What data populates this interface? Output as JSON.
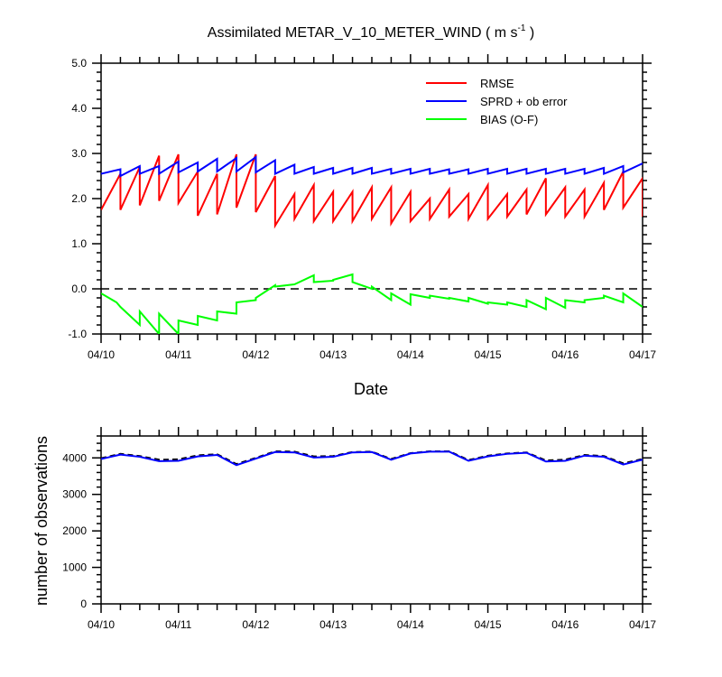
{
  "chart_data": [
    {
      "type": "line",
      "title": "Assimilated METAR_V_10_METER_WIND ( m s",
      "title_superscript": "-1",
      "title_suffix": " )",
      "xlabel": "Date",
      "ylabel": "",
      "x_ticks": [
        "04/10",
        "04/11",
        "04/12",
        "04/13",
        "04/14",
        "04/15",
        "04/16",
        "04/17"
      ],
      "ylim": [
        -1.0,
        5.0
      ],
      "y_ticks": [
        "-1.0",
        "0.0",
        "1.0",
        "2.0",
        "3.0",
        "4.0",
        "5.0"
      ],
      "reference_line": 0.0,
      "legend_position": "top-right",
      "series": [
        {
          "name": "RMSE",
          "color": "#ff0000",
          "x": [
            0.0,
            0.25,
            0.25,
            0.5,
            0.5,
            0.75,
            0.75,
            1.0,
            1.0,
            1.25,
            1.25,
            1.5,
            1.5,
            1.75,
            1.75,
            2.0,
            2.0,
            2.25,
            2.25,
            2.5,
            2.5,
            2.75,
            2.75,
            3.0,
            3.0,
            3.25,
            3.25,
            3.5,
            3.5,
            3.75,
            3.75,
            4.0,
            4.0,
            4.25,
            4.25,
            4.5,
            4.5,
            4.75,
            4.75,
            5.0,
            5.0,
            5.25,
            5.25,
            5.5,
            5.5,
            5.75,
            5.75,
            6.0,
            6.0,
            6.25,
            6.25,
            6.5,
            6.5,
            6.75,
            6.75,
            7.0,
            7.0
          ],
          "values": [
            1.75,
            2.55,
            1.75,
            2.7,
            1.85,
            2.95,
            1.95,
            2.98,
            1.9,
            2.6,
            1.62,
            2.55,
            1.65,
            2.98,
            1.8,
            2.98,
            1.7,
            2.5,
            1.4,
            2.1,
            1.55,
            2.3,
            1.5,
            2.15,
            1.5,
            2.15,
            1.5,
            2.25,
            1.55,
            2.25,
            1.45,
            2.15,
            1.5,
            2.0,
            1.55,
            2.2,
            1.6,
            2.1,
            1.55,
            2.3,
            1.55,
            2.1,
            1.6,
            2.2,
            1.65,
            2.45,
            1.65,
            2.25,
            1.6,
            2.2,
            1.6,
            2.35,
            1.75,
            2.6,
            1.8,
            2.45,
            1.6
          ]
        },
        {
          "name": "SPRD + ob error",
          "color": "#0000ff",
          "x": [
            0.0,
            0.25,
            0.25,
            0.5,
            0.5,
            0.75,
            0.75,
            1.0,
            1.0,
            1.25,
            1.25,
            1.5,
            1.5,
            1.75,
            1.75,
            2.0,
            2.0,
            2.25,
            2.25,
            2.5,
            2.5,
            2.75,
            2.75,
            3.0,
            3.0,
            3.25,
            3.25,
            3.5,
            3.5,
            3.75,
            3.75,
            4.0,
            4.0,
            4.25,
            4.25,
            4.5,
            4.5,
            4.75,
            4.75,
            5.0,
            5.0,
            5.25,
            5.25,
            5.5,
            5.5,
            5.75,
            5.75,
            6.0,
            6.0,
            6.25,
            6.25,
            6.5,
            6.5,
            6.75,
            6.75,
            7.0
          ],
          "values": [
            2.55,
            2.65,
            2.5,
            2.72,
            2.55,
            2.72,
            2.55,
            2.82,
            2.58,
            2.8,
            2.6,
            2.88,
            2.6,
            2.9,
            2.6,
            2.92,
            2.58,
            2.85,
            2.55,
            2.75,
            2.55,
            2.7,
            2.55,
            2.68,
            2.55,
            2.68,
            2.55,
            2.68,
            2.55,
            2.66,
            2.55,
            2.66,
            2.55,
            2.66,
            2.55,
            2.65,
            2.55,
            2.65,
            2.55,
            2.66,
            2.55,
            2.66,
            2.55,
            2.66,
            2.55,
            2.66,
            2.55,
            2.66,
            2.55,
            2.66,
            2.55,
            2.68,
            2.55,
            2.72,
            2.58,
            2.78
          ]
        },
        {
          "name": "BIAS (O-F)",
          "color": "#00ff00",
          "x": [
            0.0,
            0.2,
            0.25,
            0.5,
            0.5,
            0.75,
            0.75,
            1.0,
            1.0,
            1.25,
            1.25,
            1.5,
            1.5,
            1.75,
            1.75,
            2.0,
            2.0,
            2.25,
            2.25,
            2.5,
            2.5,
            2.75,
            2.75,
            3.0,
            3.0,
            3.25,
            3.25,
            3.5,
            3.5,
            3.75,
            3.75,
            4.0,
            4.0,
            4.25,
            4.25,
            4.5,
            4.5,
            4.75,
            4.75,
            5.0,
            5.0,
            5.25,
            5.25,
            5.5,
            5.5,
            5.75,
            5.75,
            6.0,
            6.0,
            6.25,
            6.25,
            6.5,
            6.5,
            6.75,
            6.75,
            7.0
          ],
          "values": [
            -0.1,
            -0.3,
            -0.4,
            -0.8,
            -0.5,
            -1.0,
            -0.55,
            -1.0,
            -0.7,
            -0.8,
            -0.6,
            -0.7,
            -0.5,
            -0.55,
            -0.3,
            -0.25,
            -0.2,
            0.08,
            0.05,
            0.1,
            0.1,
            0.3,
            0.15,
            0.18,
            0.2,
            0.32,
            0.15,
            0.0,
            0.05,
            -0.25,
            -0.1,
            -0.35,
            -0.12,
            -0.2,
            -0.15,
            -0.22,
            -0.2,
            -0.28,
            -0.2,
            -0.33,
            -0.3,
            -0.35,
            -0.3,
            -0.4,
            -0.25,
            -0.45,
            -0.2,
            -0.42,
            -0.25,
            -0.3,
            -0.25,
            -0.2,
            -0.15,
            -0.3,
            -0.1,
            -0.4
          ]
        }
      ]
    },
    {
      "type": "line",
      "title": "",
      "xlabel": "",
      "ylabel": "number of observations",
      "x_ticks": [
        "04/10",
        "04/11",
        "04/12",
        "04/13",
        "04/14",
        "04/15",
        "04/16",
        "04/17"
      ],
      "ylim": [
        0,
        4600
      ],
      "y_ticks": [
        "0",
        "1000",
        "2000",
        "3000",
        "4000"
      ],
      "series": [
        {
          "name": "",
          "color": "#000000",
          "dashed": true,
          "x": [
            0,
            0.25,
            0.5,
            0.75,
            1.0,
            1.25,
            1.5,
            1.75,
            2.0,
            2.25,
            2.5,
            2.75,
            3.0,
            3.25,
            3.5,
            3.75,
            4.0,
            4.25,
            4.5,
            4.75,
            5.0,
            5.25,
            5.5,
            5.75,
            6.0,
            6.25,
            6.5,
            6.75,
            7.0
          ],
          "values": [
            3990,
            4110,
            4050,
            3950,
            3960,
            4070,
            4100,
            3830,
            4000,
            4180,
            4170,
            4040,
            4050,
            4160,
            4170,
            3970,
            4130,
            4180,
            4180,
            3940,
            4060,
            4120,
            4150,
            3930,
            3950,
            4080,
            4050,
            3850,
            3970
          ]
        },
        {
          "name": "",
          "color": "#0000ff",
          "x": [
            0,
            0.25,
            0.5,
            0.75,
            1.0,
            1.25,
            1.5,
            1.75,
            2.0,
            2.25,
            2.5,
            2.75,
            3.0,
            3.25,
            3.5,
            3.75,
            4.0,
            4.25,
            4.5,
            4.75,
            5.0,
            5.25,
            5.5,
            5.75,
            6.0,
            6.25,
            6.5,
            6.75,
            7.0
          ],
          "values": [
            3970,
            4090,
            4030,
            3910,
            3920,
            4040,
            4080,
            3800,
            3980,
            4160,
            4150,
            4010,
            4030,
            4150,
            4160,
            3950,
            4120,
            4170,
            4170,
            3920,
            4040,
            4110,
            4140,
            3900,
            3920,
            4060,
            4030,
            3820,
            3950
          ]
        }
      ]
    }
  ]
}
